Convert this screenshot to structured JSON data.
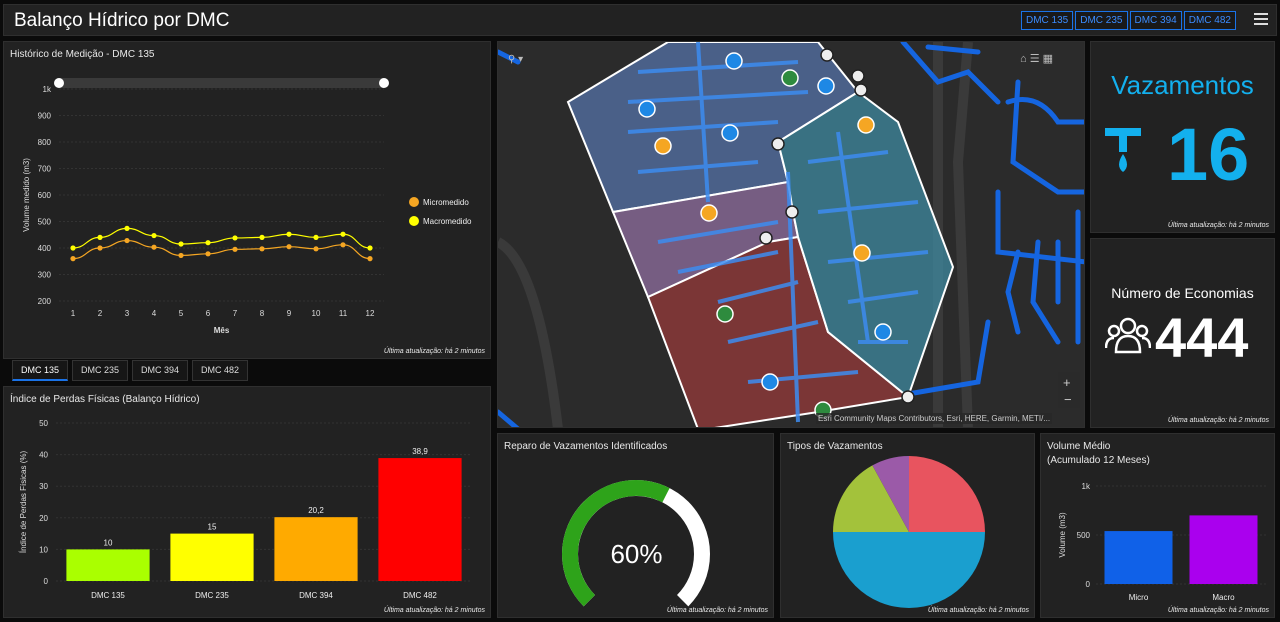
{
  "header": {
    "title": "Balanço Hídrico por DMC",
    "tabs": [
      "DMC 135",
      "DMC 235",
      "DMC 394",
      "DMC 482"
    ]
  },
  "update_text": "Última atualização: há 2 minutos",
  "history": {
    "title": "Histórico de Medição - DMC 135",
    "chart_data": {
      "type": "line",
      "x": [
        1,
        2,
        3,
        4,
        5,
        6,
        7,
        8,
        9,
        10,
        11,
        12
      ],
      "series": [
        {
          "name": "Micromedido",
          "values": [
            360,
            400,
            428,
            403,
            372,
            378,
            395,
            397,
            405,
            397,
            412,
            360
          ],
          "color": "#f5a623"
        },
        {
          "name": "Macromedido",
          "values": [
            400,
            440,
            474,
            447,
            415,
            420,
            438,
            440,
            452,
            440,
            452,
            400
          ],
          "color": "#ffff00"
        }
      ],
      "xlabel": "Mês",
      "ylabel": "Volume medido (m3)",
      "ylim": [
        200,
        1000
      ],
      "ytick_labels": [
        "200",
        "300",
        "400",
        "500",
        "600",
        "700",
        "800",
        "900",
        "1k"
      ],
      "xtick_labels": [
        "1",
        "2",
        "3",
        "4",
        "5",
        "6",
        "7",
        "8",
        "9",
        "10",
        "11",
        "12"
      ],
      "legend_position": "right"
    }
  },
  "dmc_tabs": [
    "DMC 135",
    "DMC 235",
    "DMC 394",
    "DMC 482"
  ],
  "losses": {
    "title": "Índice de Perdas Físicas (Balanço Hídrico)",
    "chart_data": {
      "type": "bar",
      "categories": [
        "DMC 135",
        "DMC 235",
        "DMC 394",
        "DMC 482"
      ],
      "values": [
        10,
        15,
        20.2,
        38.9
      ],
      "value_labels": [
        "10",
        "15",
        "20,2",
        "38,9"
      ],
      "colors": [
        "#aaff00",
        "#ffff00",
        "#ffaa00",
        "#ff0000"
      ],
      "ylabel": "Índice de Perdas Físicas (%)",
      "ylim": [
        0,
        50
      ],
      "ytick_labels": [
        "0",
        "10",
        "20",
        "30",
        "40",
        "50"
      ]
    }
  },
  "map": {
    "attribution": "Esri Community Maps Contributors, Esri, HERE, Garmin, METI/..."
  },
  "leaks": {
    "title": "Vazamentos",
    "value": "16"
  },
  "economies": {
    "title": "Número de Economias",
    "value": "444"
  },
  "repair": {
    "title": "Reparo de Vazamentos Identificados",
    "value": "60%",
    "fraction": 0.6
  },
  "types": {
    "title": "Tipos de Vazamentos",
    "chart_data": {
      "type": "pie",
      "values": [
        25,
        50,
        17,
        8
      ],
      "colors": [
        "#e8545f",
        "#1a9fcf",
        "#a3c23b",
        "#9b5aa8"
      ]
    }
  },
  "volume": {
    "title_line1": "Volume Médio",
    "title_line2": "(Acumulado 12 Meses)",
    "chart_data": {
      "type": "bar",
      "categories": [
        "Micro",
        "Macro"
      ],
      "values": [
        540,
        700
      ],
      "colors": [
        "#1061e8",
        "#aa00ee"
      ],
      "ylabel": "Volume (m3)",
      "ylim": [
        0,
        1000
      ],
      "ytick_labels": [
        "0",
        "500",
        "1k"
      ]
    }
  }
}
